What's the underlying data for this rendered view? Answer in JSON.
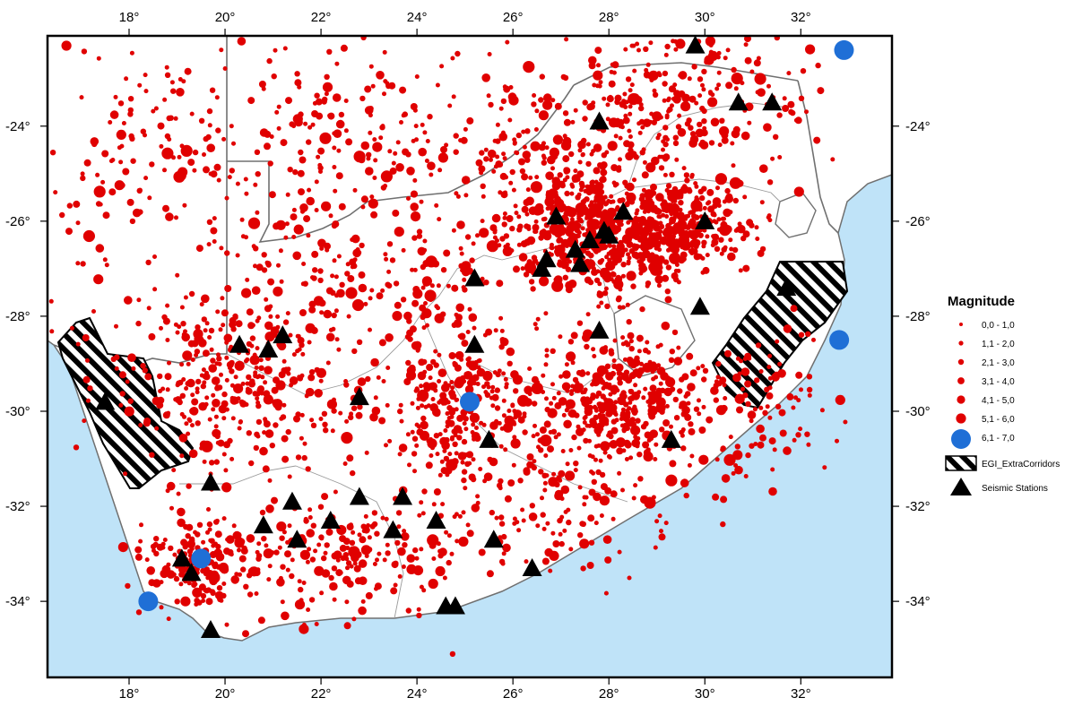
{
  "map": {
    "longitude_ticks": [
      "18°",
      "20°",
      "22°",
      "24°",
      "26°",
      "28°",
      "30°",
      "32°"
    ],
    "latitude_ticks": [
      "-24°",
      "-26°",
      "-28°",
      "-30°",
      "-32°",
      "-34°"
    ],
    "extent": {
      "lon_min": 16.3,
      "lon_max": 33.9,
      "lat_min": -35.6,
      "lat_max": -22.1
    },
    "colors": {
      "ocean": "#bfe3f8",
      "land": "#ffffff",
      "border": "#707070",
      "province_border": "#9a9a9a",
      "quake": "#e00000",
      "quake_large": "#1f6fd6",
      "station": "#000000"
    }
  },
  "legend": {
    "title": "Magnitude",
    "entries": [
      {
        "label": "0,0 - 1,0",
        "symbol": "quake-dot",
        "size_class": 1
      },
      {
        "label": "1,1 - 2,0",
        "symbol": "quake-dot",
        "size_class": 2
      },
      {
        "label": "2,1 - 3,0",
        "symbol": "quake-dot",
        "size_class": 3
      },
      {
        "label": "3,1 - 4,0",
        "symbol": "quake-dot",
        "size_class": 4
      },
      {
        "label": "4,1 - 5,0",
        "symbol": "quake-dot",
        "size_class": 5
      },
      {
        "label": "5,1 - 6,0",
        "symbol": "quake-dot",
        "size_class": 6
      },
      {
        "label": "6,1 - 7,0",
        "symbol": "quake-large-dot",
        "size_class": 7
      },
      {
        "label": "EGI_ExtraCorridors",
        "symbol": "hatched-box"
      },
      {
        "label": "Seismic Stations",
        "symbol": "triangle"
      }
    ]
  },
  "seismic_stations": [
    [
      29.8,
      -22.3
    ],
    [
      30.7,
      -23.5
    ],
    [
      31.4,
      -23.5
    ],
    [
      27.8,
      -23.9
    ],
    [
      26.9,
      -25.9
    ],
    [
      28.3,
      -25.8
    ],
    [
      27.9,
      -26.2
    ],
    [
      27.6,
      -26.4
    ],
    [
      27.3,
      -26.6
    ],
    [
      28.0,
      -26.3
    ],
    [
      30.0,
      -26.0
    ],
    [
      26.7,
      -26.8
    ],
    [
      26.6,
      -27.0
    ],
    [
      27.4,
      -26.9
    ],
    [
      25.2,
      -27.2
    ],
    [
      31.7,
      -27.4
    ],
    [
      29.9,
      -27.8
    ],
    [
      27.8,
      -28.3
    ],
    [
      21.2,
      -28.4
    ],
    [
      20.3,
      -28.6
    ],
    [
      20.9,
      -28.7
    ],
    [
      25.2,
      -28.6
    ],
    [
      17.5,
      -29.8
    ],
    [
      22.8,
      -29.7
    ],
    [
      25.5,
      -30.6
    ],
    [
      29.3,
      -30.6
    ],
    [
      19.7,
      -31.5
    ],
    [
      22.8,
      -31.8
    ],
    [
      23.7,
      -31.8
    ],
    [
      21.4,
      -31.9
    ],
    [
      20.8,
      -32.4
    ],
    [
      22.2,
      -32.3
    ],
    [
      24.4,
      -32.3
    ],
    [
      23.5,
      -32.5
    ],
    [
      21.5,
      -32.7
    ],
    [
      25.6,
      -32.7
    ],
    [
      19.1,
      -33.1
    ],
    [
      19.3,
      -33.4
    ],
    [
      26.4,
      -33.3
    ],
    [
      19.7,
      -34.6
    ],
    [
      24.6,
      -34.1
    ],
    [
      24.8,
      -34.1
    ]
  ],
  "large_events": [
    [
      32.9,
      -22.4
    ],
    [
      32.8,
      -28.5
    ],
    [
      25.1,
      -29.8
    ],
    [
      19.5,
      -33.1
    ],
    [
      18.4,
      -34.0
    ]
  ]
}
